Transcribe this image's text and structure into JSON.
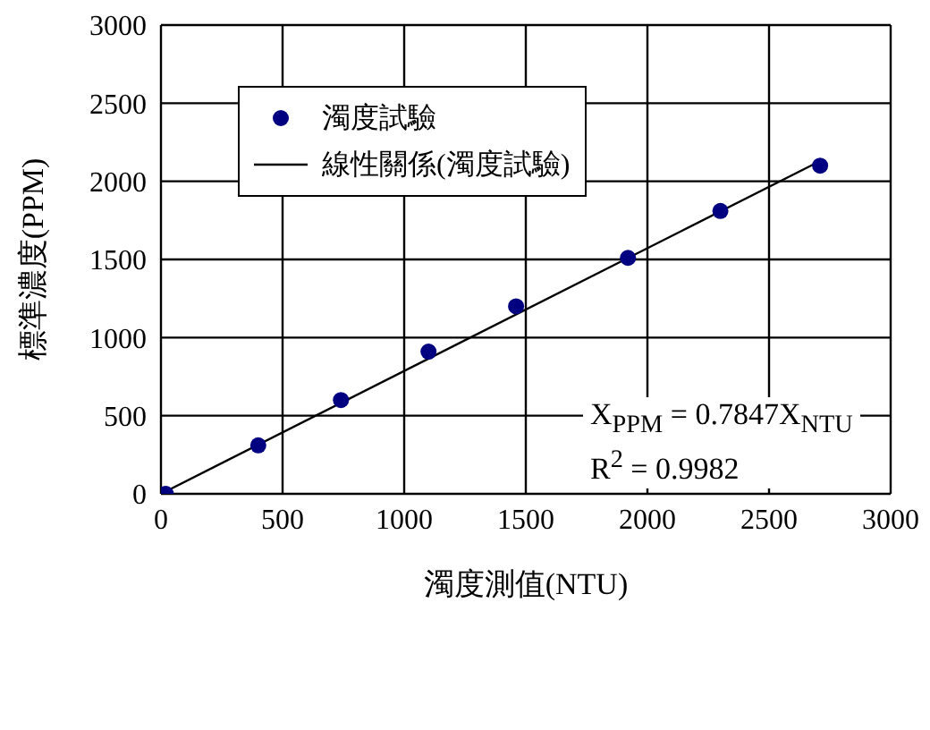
{
  "chart_data": {
    "type": "scatter",
    "xlabel": "濁度測值(NTU)",
    "ylabel": "標準濃度(PPM)",
    "series": [
      {
        "name": "濁度試驗",
        "marker": "circle",
        "color": "#000080",
        "x": [
          20,
          400,
          740,
          1100,
          1460,
          1920,
          2300,
          2710
        ],
        "values": [
          0,
          310,
          600,
          910,
          1200,
          1510,
          1810,
          2100
        ]
      },
      {
        "name": "線性關係(濁度試驗)",
        "type": "line",
        "marker": "none",
        "color": "#000000",
        "x": [
          0,
          2710
        ],
        "values": [
          0,
          2130
        ]
      }
    ],
    "xlim": [
      0,
      3000
    ],
    "xticks": [
      0,
      500,
      1000,
      1500,
      2000,
      2500,
      3000
    ],
    "ylim": [
      0,
      3000
    ],
    "yticks": [
      0,
      500,
      1000,
      1500,
      2000,
      2500,
      3000
    ],
    "grid": true,
    "legend": "top left",
    "line_style": "solid",
    "annotations": [
      "X$_{PPM}$ = 0.7847X$_{NTU}$",
      "R$^{2}$ = 0.9982"
    ]
  }
}
